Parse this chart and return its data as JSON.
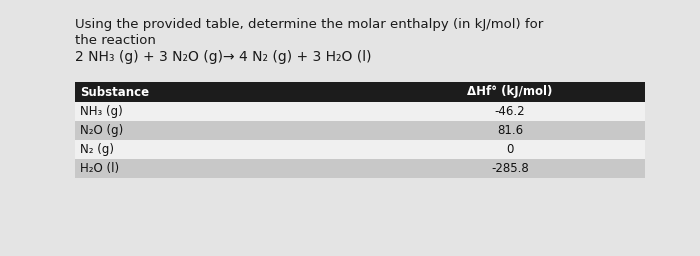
{
  "title_line1": "Using the provided table, determine the molar enthalpy (in kJ/mol) for",
  "title_line2": "the reaction",
  "reaction": "2 NH₃ (g) + 3 N₂O (g)→ 4 N₂ (g) + 3 H₂O (l)",
  "col1_header": "Substance",
  "col2_header": "ΔHf° (kJ/mol)",
  "substances": [
    "NH₃ (g)",
    "N₂O (g)",
    "N₂ (g)",
    "H₂O (l)"
  ],
  "values": [
    "-46.2",
    "81.6",
    "0",
    "-285.8"
  ],
  "header_bg": "#1c1c1c",
  "header_fg": "#ffffff",
  "row_colors": [
    "#f0f0f0",
    "#c8c8c8",
    "#f0f0f0",
    "#c8c8c8"
  ],
  "row_fg": "#111111",
  "bg_color": "#e4e4e4",
  "title_fontsize": 9.5,
  "reaction_fontsize": 10.0,
  "table_fontsize": 8.5
}
